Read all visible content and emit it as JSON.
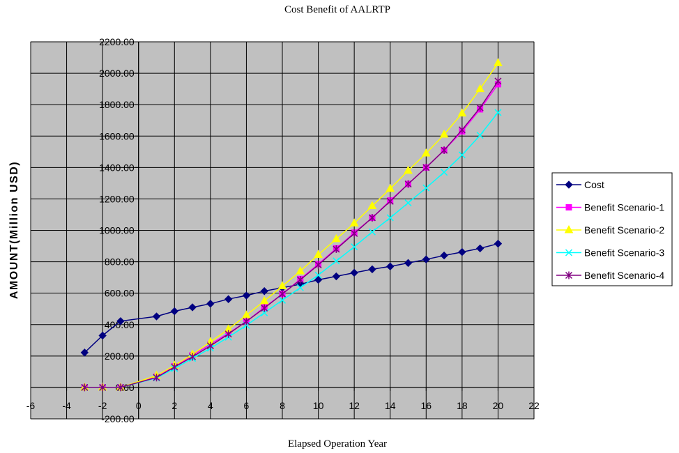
{
  "chart_data": {
    "type": "line",
    "title": "Cost Benefit of AALRTP",
    "xlabel": "Elapsed Operation Year",
    "ylabel": "AMOUNT(Million USD)",
    "xlim": [
      -6,
      22
    ],
    "ylim": [
      -200,
      2200
    ],
    "x_ticks": [
      -6,
      -4,
      -2,
      0,
      2,
      4,
      6,
      8,
      10,
      12,
      14,
      16,
      18,
      20,
      22
    ],
    "y_ticks": [
      -200,
      0,
      200,
      400,
      600,
      800,
      1000,
      1200,
      1400,
      1600,
      1800,
      2000,
      2200
    ],
    "y_tick_labels": [
      "-200.00",
      "0.00",
      "200.00",
      "400.00",
      "600.00",
      "800.00",
      "1000.00",
      "1200.00",
      "1400.00",
      "1600.00",
      "1800.00",
      "2000.00",
      "2200.00"
    ],
    "grid": true,
    "plot_background": "#c0c0c0",
    "legend_position": "right",
    "series": [
      {
        "name": "Cost",
        "color": "#000080",
        "marker": "diamond",
        "points": [
          [
            -3,
            222
          ],
          [
            -2,
            330
          ],
          [
            -1,
            422
          ],
          [
            1,
            452
          ],
          [
            2,
            485
          ],
          [
            3,
            510
          ],
          [
            4,
            533
          ],
          [
            5,
            562
          ],
          [
            6,
            585
          ],
          [
            7,
            613
          ],
          [
            8,
            635
          ],
          [
            9,
            657
          ],
          [
            10,
            685
          ],
          [
            11,
            707
          ],
          [
            12,
            730
          ],
          [
            13,
            752
          ],
          [
            14,
            770
          ],
          [
            15,
            792
          ],
          [
            16,
            815
          ],
          [
            17,
            840
          ],
          [
            18,
            862
          ],
          [
            19,
            885
          ],
          [
            20,
            915
          ]
        ]
      },
      {
        "name": "Benefit Scenario-1",
        "color": "#ff00ff",
        "marker": "square",
        "points": [
          [
            -3,
            0
          ],
          [
            -2,
            0
          ],
          [
            -1,
            0
          ],
          [
            1,
            68
          ],
          [
            2,
            135
          ],
          [
            3,
            205
          ],
          [
            4,
            275
          ],
          [
            5,
            345
          ],
          [
            6,
            420
          ],
          [
            7,
            510
          ],
          [
            8,
            595
          ],
          [
            9,
            690
          ],
          [
            10,
            785
          ],
          [
            11,
            885
          ],
          [
            12,
            985
          ],
          [
            13,
            1080
          ],
          [
            14,
            1190
          ],
          [
            15,
            1295
          ],
          [
            16,
            1400
          ],
          [
            17,
            1510
          ],
          [
            18,
            1630
          ],
          [
            19,
            1770
          ],
          [
            20,
            1930
          ]
        ]
      },
      {
        "name": "Benefit Scenario-2",
        "color": "#ffff00",
        "marker": "triangle",
        "points": [
          [
            -3,
            0
          ],
          [
            -2,
            0
          ],
          [
            -1,
            0
          ],
          [
            1,
            75
          ],
          [
            2,
            140
          ],
          [
            3,
            210
          ],
          [
            4,
            290
          ],
          [
            5,
            370
          ],
          [
            6,
            460
          ],
          [
            7,
            550
          ],
          [
            8,
            645
          ],
          [
            9,
            740
          ],
          [
            10,
            845
          ],
          [
            11,
            945
          ],
          [
            12,
            1045
          ],
          [
            13,
            1155
          ],
          [
            14,
            1265
          ],
          [
            15,
            1380
          ],
          [
            16,
            1490
          ],
          [
            17,
            1610
          ],
          [
            18,
            1745
          ],
          [
            19,
            1900
          ],
          [
            20,
            2065
          ]
        ]
      },
      {
        "name": "Benefit Scenario-3",
        "color": "#00ffff",
        "marker": "x",
        "points": [
          [
            -3,
            0
          ],
          [
            -2,
            0
          ],
          [
            -1,
            0
          ],
          [
            1,
            60
          ],
          [
            2,
            120
          ],
          [
            3,
            185
          ],
          [
            4,
            250
          ],
          [
            5,
            320
          ],
          [
            6,
            395
          ],
          [
            7,
            475
          ],
          [
            8,
            555
          ],
          [
            9,
            635
          ],
          [
            10,
            715
          ],
          [
            11,
            805
          ],
          [
            12,
            895
          ],
          [
            13,
            990
          ],
          [
            14,
            1080
          ],
          [
            15,
            1175
          ],
          [
            16,
            1270
          ],
          [
            17,
            1370
          ],
          [
            18,
            1480
          ],
          [
            19,
            1605
          ],
          [
            20,
            1750
          ]
        ]
      },
      {
        "name": "Benefit Scenario-4",
        "color": "#800080",
        "marker": "star",
        "points": [
          [
            -3,
            0
          ],
          [
            -2,
            0
          ],
          [
            -1,
            0
          ],
          [
            1,
            63
          ],
          [
            2,
            130
          ],
          [
            3,
            195
          ],
          [
            4,
            265
          ],
          [
            5,
            340
          ],
          [
            6,
            420
          ],
          [
            7,
            505
          ],
          [
            8,
            595
          ],
          [
            9,
            685
          ],
          [
            10,
            780
          ],
          [
            11,
            880
          ],
          [
            12,
            980
          ],
          [
            13,
            1080
          ],
          [
            14,
            1185
          ],
          [
            15,
            1295
          ],
          [
            16,
            1400
          ],
          [
            17,
            1510
          ],
          [
            18,
            1640
          ],
          [
            19,
            1780
          ],
          [
            20,
            1950
          ]
        ]
      }
    ]
  }
}
